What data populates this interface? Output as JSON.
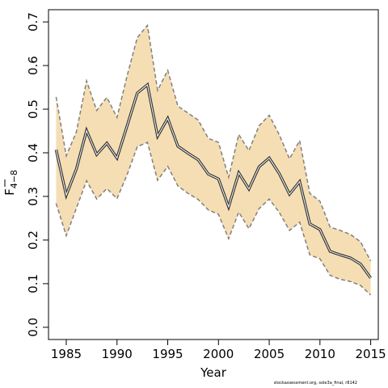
{
  "chart_data": {
    "type": "line",
    "xlabel": "Year",
    "ylabel_main": "F",
    "ylabel_sub": "4−8",
    "xlim": [
      1983.25,
      2015.75
    ],
    "ylim": [
      -0.028,
      0.728
    ],
    "x_ticks": [
      1985,
      1990,
      1995,
      2000,
      2005,
      2010,
      2015
    ],
    "y_ticks": [
      0.0,
      0.1,
      0.2,
      0.3,
      0.4,
      0.5,
      0.6,
      0.7
    ],
    "y_tick_labels": [
      "0.0",
      "0.1",
      "0.2",
      "0.3",
      "0.4",
      "0.5",
      "0.6",
      "0.7"
    ],
    "grid": false,
    "x": [
      1984,
      1985,
      1986,
      1987,
      1988,
      1989,
      1990,
      1991,
      1992,
      1993,
      1994,
      1995,
      1996,
      1997,
      1998,
      1999,
      2000,
      2001,
      2002,
      2003,
      2004,
      2005,
      2006,
      2007,
      2008,
      2009,
      2010,
      2011,
      2012,
      2013,
      2014,
      2015
    ],
    "series": [
      {
        "role": "estimate",
        "color": "#333333",
        "values": [
          0.407,
          0.303,
          0.363,
          0.451,
          0.396,
          0.422,
          0.388,
          0.462,
          0.537,
          0.556,
          0.438,
          0.479,
          0.415,
          0.399,
          0.384,
          0.351,
          0.34,
          0.276,
          0.354,
          0.317,
          0.368,
          0.388,
          0.352,
          0.305,
          0.334,
          0.237,
          0.224,
          0.174,
          0.166,
          0.159,
          0.145,
          0.113
        ]
      },
      {
        "role": "upper",
        "color": "#808080",
        "values": [
          0.528,
          0.393,
          0.448,
          0.565,
          0.497,
          0.527,
          0.481,
          0.577,
          0.664,
          0.692,
          0.543,
          0.589,
          0.507,
          0.491,
          0.475,
          0.433,
          0.424,
          0.344,
          0.442,
          0.405,
          0.462,
          0.486,
          0.441,
          0.386,
          0.428,
          0.307,
          0.289,
          0.23,
          0.222,
          0.213,
          0.196,
          0.152
        ]
      },
      {
        "role": "lower",
        "color": "#808080",
        "values": [
          0.284,
          0.21,
          0.273,
          0.336,
          0.294,
          0.318,
          0.295,
          0.35,
          0.414,
          0.424,
          0.337,
          0.369,
          0.324,
          0.307,
          0.293,
          0.269,
          0.259,
          0.203,
          0.264,
          0.226,
          0.272,
          0.294,
          0.263,
          0.222,
          0.241,
          0.166,
          0.157,
          0.119,
          0.11,
          0.105,
          0.096,
          0.074
        ]
      }
    ],
    "band_color": "#f5deb3",
    "estimate_color": "#333333",
    "bound_color": "#808080"
  },
  "footnote": "stockassessment.org, sole3a_final, r8142"
}
